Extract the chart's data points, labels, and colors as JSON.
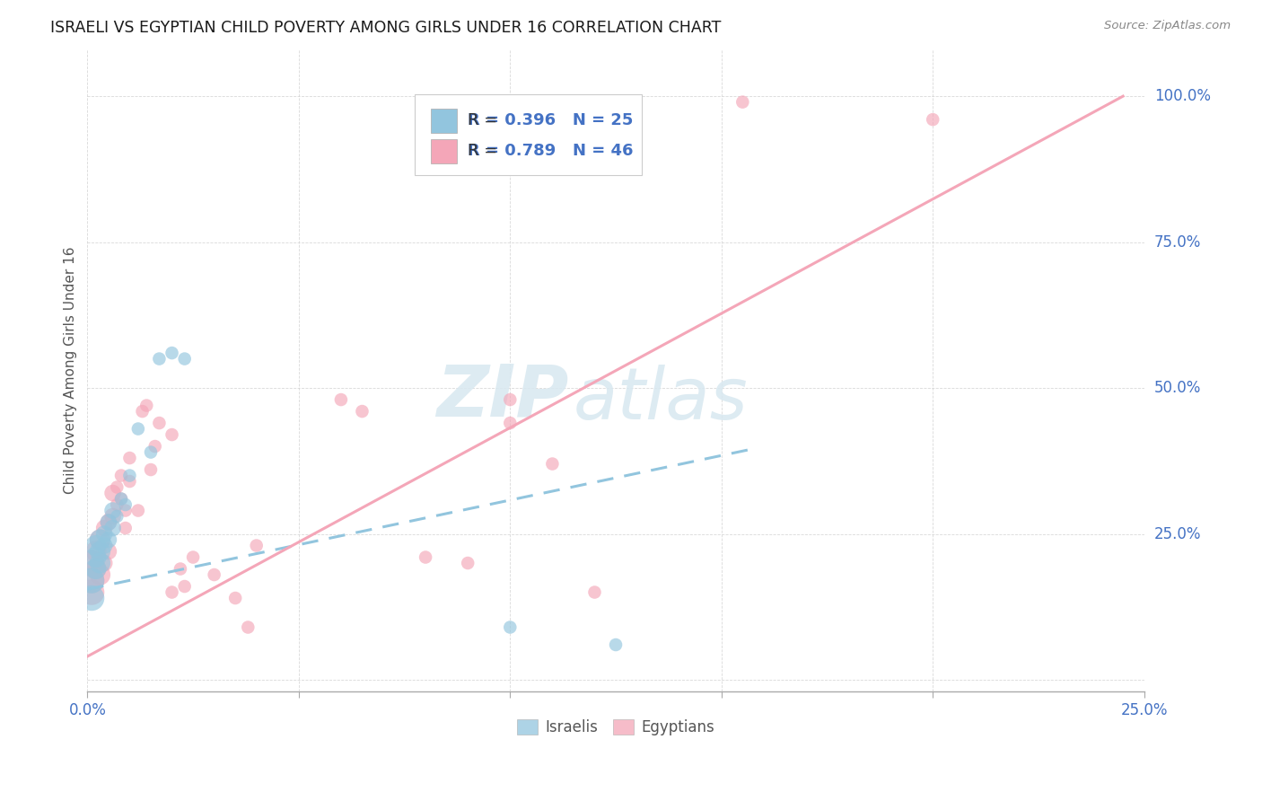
{
  "title": "ISRAELI VS EGYPTIAN CHILD POVERTY AMONG GIRLS UNDER 16 CORRELATION CHART",
  "source": "Source: ZipAtlas.com",
  "ylabel": "Child Poverty Among Girls Under 16",
  "watermark_zip": "ZIP",
  "watermark_atlas": "atlas",
  "xlim": [
    0.0,
    0.25
  ],
  "ylim": [
    -0.02,
    1.08
  ],
  "xticks": [
    0.0,
    0.05,
    0.1,
    0.15,
    0.2,
    0.25
  ],
  "xtick_labels": [
    "0.0%",
    "",
    "",
    "",
    "",
    "25.0%"
  ],
  "yticks": [
    0.0,
    0.25,
    0.5,
    0.75,
    1.0
  ],
  "ytick_labels": [
    "",
    "25.0%",
    "50.0%",
    "75.0%",
    "100.0%"
  ],
  "israeli_color": "#92c5de",
  "egyptian_color": "#f4a6b8",
  "axis_label_color": "#4472c4",
  "israeli_R": "0.396",
  "israeli_N": "25",
  "egyptian_R": "0.789",
  "egyptian_N": "46",
  "israeli_points": [
    [
      0.001,
      0.17
    ],
    [
      0.001,
      0.14
    ],
    [
      0.002,
      0.19
    ],
    [
      0.002,
      0.21
    ],
    [
      0.002,
      0.23
    ],
    [
      0.003,
      0.22
    ],
    [
      0.003,
      0.24
    ],
    [
      0.003,
      0.2
    ],
    [
      0.004,
      0.25
    ],
    [
      0.004,
      0.23
    ],
    [
      0.005,
      0.27
    ],
    [
      0.005,
      0.24
    ],
    [
      0.006,
      0.26
    ],
    [
      0.006,
      0.29
    ],
    [
      0.007,
      0.28
    ],
    [
      0.008,
      0.31
    ],
    [
      0.009,
      0.3
    ],
    [
      0.01,
      0.35
    ],
    [
      0.012,
      0.43
    ],
    [
      0.015,
      0.39
    ],
    [
      0.017,
      0.55
    ],
    [
      0.02,
      0.56
    ],
    [
      0.023,
      0.55
    ],
    [
      0.1,
      0.09
    ],
    [
      0.125,
      0.06
    ]
  ],
  "egyptian_points": [
    [
      0.001,
      0.17
    ],
    [
      0.001,
      0.2
    ],
    [
      0.001,
      0.15
    ],
    [
      0.002,
      0.19
    ],
    [
      0.002,
      0.22
    ],
    [
      0.003,
      0.18
    ],
    [
      0.003,
      0.24
    ],
    [
      0.004,
      0.2
    ],
    [
      0.004,
      0.26
    ],
    [
      0.005,
      0.22
    ],
    [
      0.005,
      0.27
    ],
    [
      0.006,
      0.28
    ],
    [
      0.006,
      0.32
    ],
    [
      0.007,
      0.3
    ],
    [
      0.007,
      0.33
    ],
    [
      0.008,
      0.31
    ],
    [
      0.008,
      0.35
    ],
    [
      0.009,
      0.29
    ],
    [
      0.009,
      0.26
    ],
    [
      0.01,
      0.34
    ],
    [
      0.01,
      0.38
    ],
    [
      0.012,
      0.29
    ],
    [
      0.013,
      0.46
    ],
    [
      0.014,
      0.47
    ],
    [
      0.015,
      0.36
    ],
    [
      0.016,
      0.4
    ],
    [
      0.017,
      0.44
    ],
    [
      0.02,
      0.42
    ],
    [
      0.02,
      0.15
    ],
    [
      0.022,
      0.19
    ],
    [
      0.023,
      0.16
    ],
    [
      0.025,
      0.21
    ],
    [
      0.03,
      0.18
    ],
    [
      0.035,
      0.14
    ],
    [
      0.038,
      0.09
    ],
    [
      0.04,
      0.23
    ],
    [
      0.06,
      0.48
    ],
    [
      0.065,
      0.46
    ],
    [
      0.08,
      0.21
    ],
    [
      0.09,
      0.2
    ],
    [
      0.1,
      0.48
    ],
    [
      0.1,
      0.44
    ],
    [
      0.11,
      0.37
    ],
    [
      0.12,
      0.15
    ],
    [
      0.155,
      0.99
    ],
    [
      0.2,
      0.96
    ]
  ],
  "israeli_line_x": [
    0.0,
    0.157
  ],
  "israeli_line_y": [
    0.155,
    0.395
  ],
  "egyptian_line_x": [
    0.0,
    0.245
  ],
  "egyptian_line_y": [
    0.04,
    1.0
  ],
  "background_color": "#ffffff",
  "grid_color": "#d0d0d0",
  "title_color": "#1a1a1a",
  "text_color_dark": "#333333"
}
